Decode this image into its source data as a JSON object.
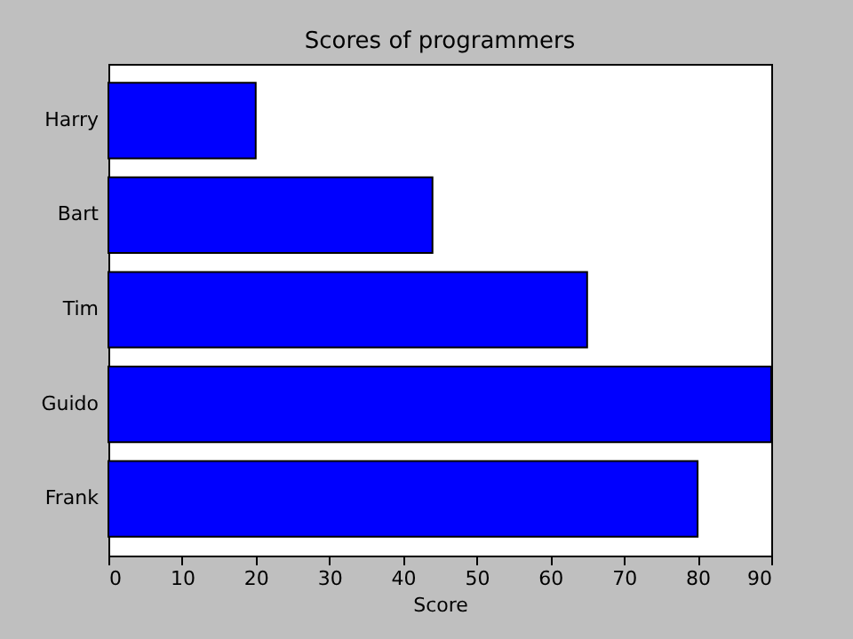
{
  "chart_data": {
    "type": "bar",
    "orientation": "horizontal",
    "title": "Scores of programmers",
    "xlabel": "Score",
    "categories": [
      "Harry",
      "Bart",
      "Tim",
      "Guido",
      "Frank"
    ],
    "values": [
      20,
      44,
      65,
      90,
      80
    ],
    "color": "#0000ff",
    "xlim": [
      0,
      90
    ],
    "xticks": [
      0,
      10,
      20,
      30,
      40,
      50,
      60,
      70,
      80,
      90
    ],
    "grid": false
  }
}
